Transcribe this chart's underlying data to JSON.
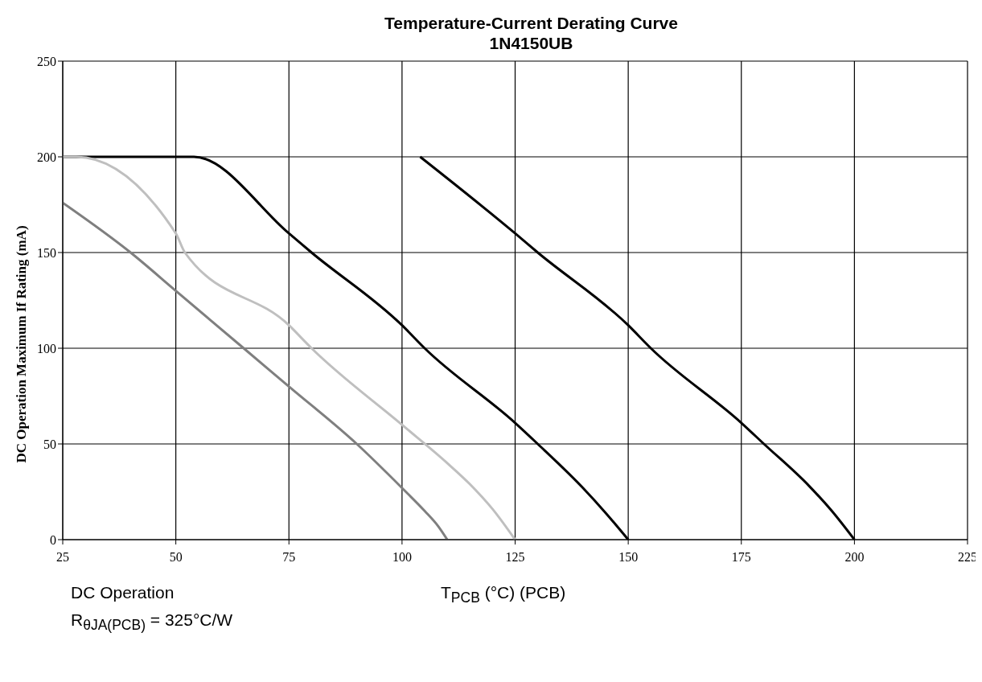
{
  "chart_data": {
    "type": "line",
    "title": "Temperature-Current Derating Curve",
    "subtitle": "1N4150UB",
    "xlabel": "T$_{PCB}$ (°C) (PCB)",
    "ylabel": "DC Operation Maximum If Rating (mA)",
    "annotations": [
      "DC Operation",
      "R$_{θJA(PCB)}$ = 325°C/W"
    ],
    "xlim": [
      25,
      225
    ],
    "xticks": [
      25,
      50,
      75,
      100,
      125,
      150,
      175,
      200,
      225
    ],
    "ylim": [
      0,
      250
    ],
    "yticks": [
      0,
      50,
      100,
      150,
      200,
      250
    ],
    "grid": true,
    "marker": "none",
    "line_style": "solid",
    "series": [
      {
        "color": "#000000",
        "x": [
          104,
          125,
          130,
          150,
          155,
          175,
          180,
          190,
          195,
          200
        ],
        "values": [
          200,
          160,
          150,
          112,
          100,
          61,
          50,
          28,
          15,
          0
        ]
      },
      {
        "color": "#000000",
        "x": [
          25,
          54,
          75,
          80,
          100,
          105,
          125,
          130,
          140,
          145,
          150
        ],
        "values": [
          200,
          200,
          160,
          150,
          112,
          100,
          61,
          50,
          27,
          14,
          0
        ]
      },
      {
        "color": "#7f7f7f",
        "x": [
          25,
          40,
          50,
          65,
          75,
          90,
          100,
          105,
          108,
          110
        ],
        "values": [
          176,
          150,
          130,
          100,
          80,
          50,
          27,
          15,
          7,
          0
        ]
      },
      {
        "color": "#bfbfbf",
        "x": [
          25,
          28,
          50,
          52,
          75,
          80,
          100,
          110,
          115,
          120,
          125
        ],
        "values": [
          200,
          200,
          160,
          150,
          112,
          100,
          60,
          40,
          29,
          16,
          0
        ]
      }
    ]
  }
}
